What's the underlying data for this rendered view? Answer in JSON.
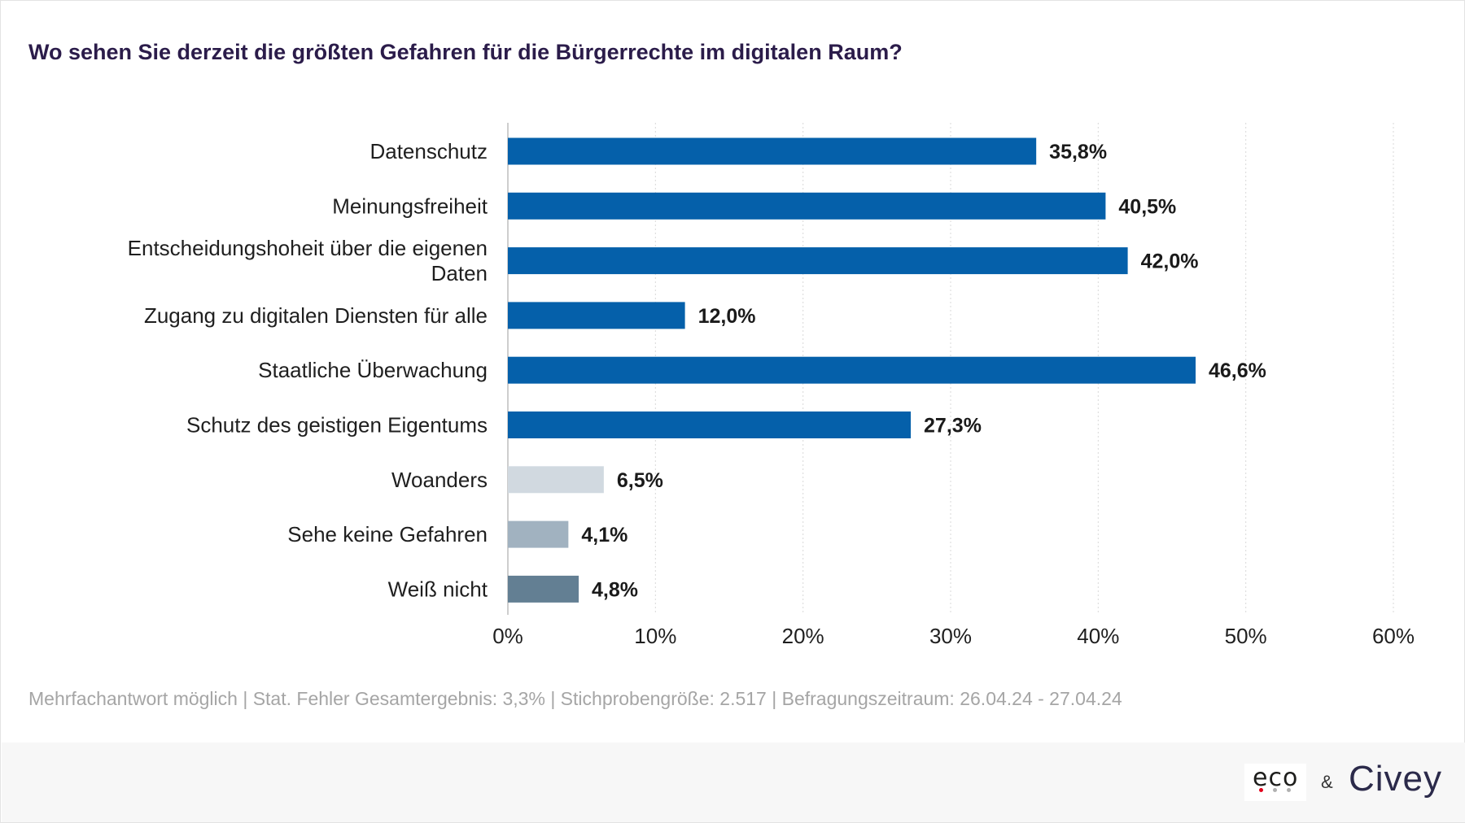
{
  "title": "Wo sehen Sie derzeit die größten Gefahren für die Bürgerrechte im digitalen Raum?",
  "footnote": "Mehrfachantwort möglich | Stat. Fehler Gesamtergebnis: 3,3% | Stichprobengröße: 2.517 | Befragungszeitraum: 26.04.24 - 27.04.24",
  "logos": {
    "eco": "eco",
    "amp": "&",
    "civey": "Civey"
  },
  "colors": {
    "primary_bar": "#0560aa",
    "woanders_bar": "#d1d9e0",
    "keine_bar": "#a1b2c0",
    "weiss_bar": "#637f93",
    "grid": "#d9d9d9",
    "title": "#2b1c4a",
    "eco_dots": [
      "#e2001a",
      "#b0b0b0",
      "#b0b0b0"
    ]
  },
  "chart_data": {
    "type": "bar",
    "orientation": "horizontal",
    "categories": [
      [
        "Datenschutz"
      ],
      [
        "Meinungsfreiheit"
      ],
      [
        "Entscheidungshoheit über die eigenen",
        "Daten"
      ],
      [
        "Zugang zu digitalen Diensten für alle"
      ],
      [
        "Staatliche Überwachung"
      ],
      [
        "Schutz des geistigen Eigentums"
      ],
      [
        "Woanders"
      ],
      [
        "Sehe keine Gefahren"
      ],
      [
        "Weiß nicht"
      ]
    ],
    "values": [
      35.8,
      40.5,
      42.0,
      12.0,
      46.6,
      27.3,
      6.5,
      4.1,
      4.8
    ],
    "value_labels": [
      "35,8%",
      "40,5%",
      "42,0%",
      "12,0%",
      "46,6%",
      "27,3%",
      "6,5%",
      "4,1%",
      "4,8%"
    ],
    "bar_colors": [
      "#0560aa",
      "#0560aa",
      "#0560aa",
      "#0560aa",
      "#0560aa",
      "#0560aa",
      "#d1d9e0",
      "#a1b2c0",
      "#637f93"
    ],
    "xlim": [
      0,
      60
    ],
    "xticks": [
      0,
      10,
      20,
      30,
      40,
      50,
      60
    ],
    "xtick_labels": [
      "0%",
      "10%",
      "20%",
      "30%",
      "40%",
      "50%",
      "60%"
    ],
    "grid": true,
    "xlabel": "",
    "ylabel": ""
  }
}
